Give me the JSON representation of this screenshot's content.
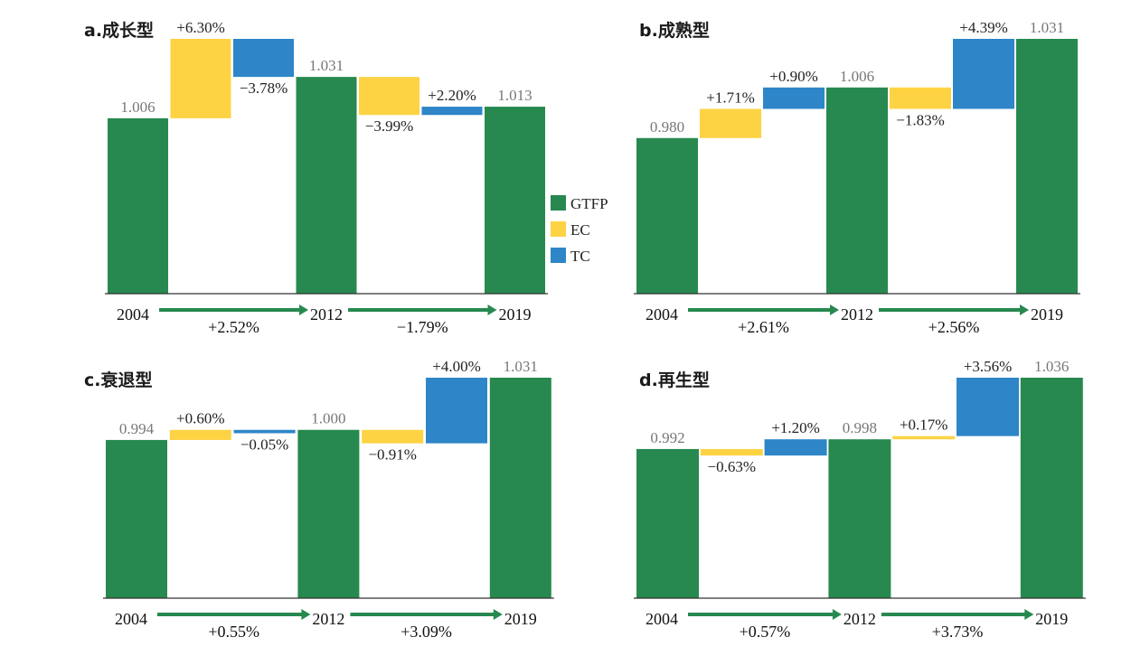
{
  "colors": {
    "GTFP": "#27894f",
    "EC": "#fdd344",
    "TC": "#2e86c8",
    "axis": "#333333",
    "arrow": "#27894f"
  },
  "legend": {
    "entries": [
      {
        "label": "GTFP",
        "key": "GTFP"
      },
      {
        "label": "EC",
        "key": "EC"
      },
      {
        "label": "TC",
        "key": "TC"
      }
    ]
  },
  "chart_data": [
    {
      "type": "bar",
      "subtype": "waterfall",
      "title": "a.成长型",
      "stages": [
        {
          "kind": "GTFP",
          "value": 1.006,
          "label": "1.006",
          "year": "2004"
        },
        {
          "kind": "EC",
          "change": "+6.30%",
          "from": 1.006,
          "to": 1.054
        },
        {
          "kind": "TC",
          "change": "−3.78%",
          "from": 1.054,
          "to": 1.031
        },
        {
          "kind": "GTFP",
          "value": 1.031,
          "label": "1.031",
          "year": "2012"
        },
        {
          "kind": "EC",
          "change": "−3.99%",
          "from": 1.031,
          "to": 1.008
        },
        {
          "kind": "TC",
          "change": "+2.20%",
          "from": 1.008,
          "to": 1.013
        },
        {
          "kind": "GTFP",
          "value": 1.013,
          "label": "1.013",
          "year": "2019"
        }
      ],
      "periods": [
        {
          "from": "2004",
          "to": "2012",
          "growth": "+2.52%"
        },
        {
          "from": "2012",
          "to": "2019",
          "growth": "−1.79%"
        }
      ]
    },
    {
      "type": "bar",
      "subtype": "waterfall",
      "title": "b.成熟型",
      "stages": [
        {
          "kind": "GTFP",
          "value": 0.98,
          "label": "0.980",
          "year": "2004"
        },
        {
          "kind": "EC",
          "change": "+1.71%",
          "from": 0.98,
          "to": 0.995
        },
        {
          "kind": "TC",
          "change": "+0.90%",
          "from": 0.995,
          "to": 1.006
        },
        {
          "kind": "GTFP",
          "value": 1.006,
          "label": "1.006",
          "year": "2012"
        },
        {
          "kind": "EC",
          "change": "−1.83%",
          "from": 1.006,
          "to": 0.995
        },
        {
          "kind": "TC",
          "change": "+4.39%",
          "from": 0.995,
          "to": 1.031
        },
        {
          "kind": "GTFP",
          "value": 1.031,
          "label": "1.031",
          "year": "2019"
        }
      ],
      "periods": [
        {
          "from": "2004",
          "to": "2012",
          "growth": "+2.61%"
        },
        {
          "from": "2012",
          "to": "2019",
          "growth": "+2.56%"
        }
      ]
    },
    {
      "type": "bar",
      "subtype": "waterfall",
      "title": "c.衰退型",
      "stages": [
        {
          "kind": "GTFP",
          "value": 0.994,
          "label": "0.994",
          "year": "2004"
        },
        {
          "kind": "EC",
          "change": "+0.60%",
          "from": 0.994,
          "to": 1.0
        },
        {
          "kind": "TC",
          "change": "−0.05%",
          "from": 1.0,
          "to": 0.998
        },
        {
          "kind": "GTFP",
          "value": 1.0,
          "label": "1.000",
          "year": "2012"
        },
        {
          "kind": "EC",
          "change": "−0.91%",
          "from": 1.0,
          "to": 0.992
        },
        {
          "kind": "TC",
          "change": "+4.00%",
          "from": 0.992,
          "to": 1.031
        },
        {
          "kind": "GTFP",
          "value": 1.031,
          "label": "1.031",
          "year": "2019"
        }
      ],
      "periods": [
        {
          "from": "2004",
          "to": "2012",
          "growth": "+0.55%"
        },
        {
          "from": "2012",
          "to": "2019",
          "growth": "+3.09%"
        }
      ]
    },
    {
      "type": "bar",
      "subtype": "waterfall",
      "title": "d.再生型",
      "stages": [
        {
          "kind": "GTFP",
          "value": 0.992,
          "label": "0.992",
          "year": "2004"
        },
        {
          "kind": "EC",
          "change": "−0.63%",
          "from": 0.992,
          "to": 0.988
        },
        {
          "kind": "TC",
          "change": "+1.20%",
          "from": 0.988,
          "to": 0.998
        },
        {
          "kind": "GTFP",
          "value": 0.998,
          "label": "0.998",
          "year": "2012"
        },
        {
          "kind": "EC",
          "change": "+0.17%",
          "from": 0.998,
          "to": 1.0
        },
        {
          "kind": "TC",
          "change": "+3.56%",
          "from": 1.0,
          "to": 1.036
        },
        {
          "kind": "GTFP",
          "value": 1.036,
          "label": "1.036",
          "year": "2019"
        }
      ],
      "periods": [
        {
          "from": "2004",
          "to": "2012",
          "growth": "+0.57%"
        },
        {
          "from": "2012",
          "to": "2019",
          "growth": "+3.73%"
        }
      ]
    }
  ]
}
